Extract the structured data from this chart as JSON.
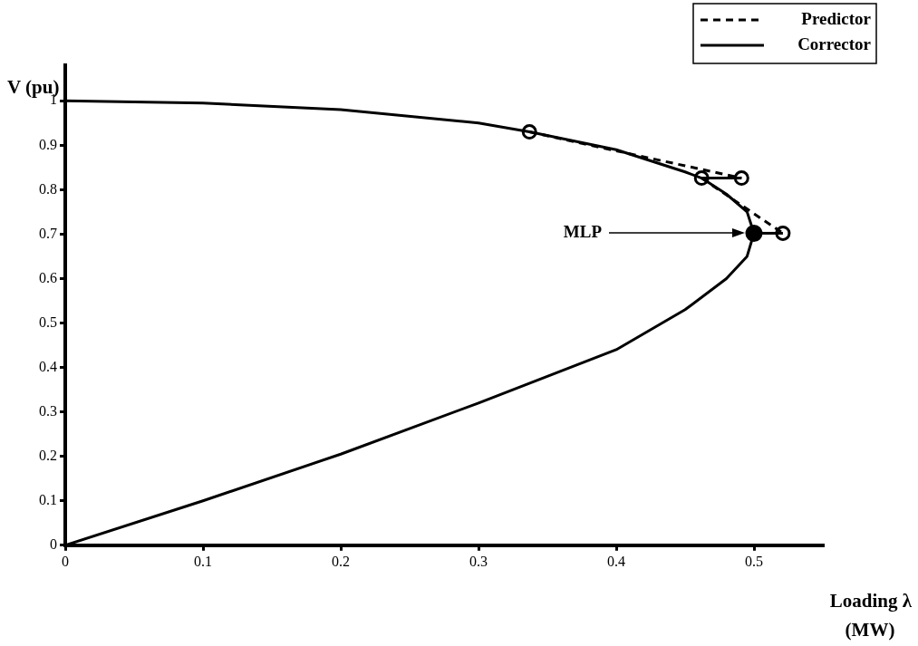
{
  "chart_data": {
    "type": "line",
    "xlabel": "Loading λ (MW)",
    "ylabel": "V (pu)",
    "xlim": [
      0,
      0.55
    ],
    "xticks": [
      0,
      0.1,
      0.2,
      0.3,
      0.4,
      0.5
    ],
    "ylim": [
      0,
      1.08
    ],
    "yticks": [
      0,
      0.1,
      0.2,
      0.3,
      0.4,
      0.5,
      0.6,
      0.7,
      0.8,
      0.9,
      1
    ],
    "grid": false,
    "legend": "top right",
    "series": [
      {
        "name": "Predictor",
        "color": "#000000",
        "line_style": "dashed",
        "x": [
          0.337,
          0.491
        ],
        "values": [
          0.93,
          0.826
        ]
      },
      {
        "color": "#000000",
        "line_style": "dashed",
        "x": [
          0.462,
          0.521
        ],
        "values": [
          0.826,
          0.702
        ]
      },
      {
        "name": "Corrector",
        "color": "#000000",
        "line_style": "solid",
        "x": [
          0,
          0.1,
          0.2,
          0.3,
          0.337,
          0.4,
          0.45,
          0.462,
          0.48,
          0.495,
          0.5,
          0.495,
          0.48,
          0.45,
          0.4,
          0.3,
          0.2,
          0.1,
          0
        ],
        "values": [
          1,
          0.995,
          0.98,
          0.95,
          0.93,
          0.89,
          0.84,
          0.826,
          0.79,
          0.75,
          0.702,
          0.65,
          0.6,
          0.53,
          0.44,
          0.32,
          0.205,
          0.1,
          0
        ]
      },
      {
        "color": "#000000",
        "line_style": "solid",
        "x": [
          0.491,
          0.462
        ],
        "values": [
          0.826,
          0.826
        ]
      },
      {
        "color": "#000000",
        "line_style": "solid",
        "x": [
          0.521,
          0.5
        ],
        "values": [
          0.702,
          0.702
        ]
      },
      {
        "type": "scatter",
        "color": "#000000",
        "marker": "circle",
        "x": [
          0.337,
          0.462,
          0.491,
          0.521
        ],
        "values": [
          0.93,
          0.826,
          0.826,
          0.702
        ]
      },
      {
        "color": "#000000",
        "marker": "circle",
        "x": [
          0.5
        ],
        "values": [
          0.702
        ]
      }
    ],
    "annotations": [
      "MLP"
    ]
  }
}
